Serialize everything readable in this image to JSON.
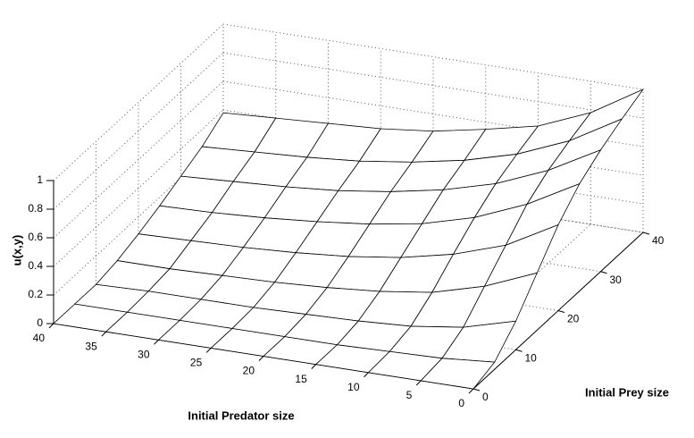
{
  "chart_data": {
    "type": "surface",
    "xlabel": "Initial Prey size",
    "ylabel": "Initial Predator size",
    "zlabel": "u(x,y)",
    "x": [
      0,
      5,
      10,
      15,
      20,
      25,
      30,
      35,
      40
    ],
    "y": [
      0,
      5,
      10,
      15,
      20,
      25,
      30,
      35,
      40
    ],
    "z": [
      [
        0,
        0.05,
        0.2,
        0.4,
        0.6,
        0.75,
        0.85,
        0.93,
        1
      ],
      [
        0,
        0.02,
        0.1,
        0.25,
        0.4,
        0.55,
        0.65,
        0.72,
        0.78
      ],
      [
        0,
        0.01,
        0.05,
        0.15,
        0.28,
        0.4,
        0.5,
        0.57,
        0.63
      ],
      [
        0,
        0,
        0.03,
        0.1,
        0.2,
        0.3,
        0.4,
        0.47,
        0.55
      ],
      [
        0,
        0,
        0.02,
        0.07,
        0.15,
        0.24,
        0.33,
        0.4,
        0.48
      ],
      [
        0,
        0,
        0.01,
        0.05,
        0.12,
        0.2,
        0.28,
        0.35,
        0.44
      ],
      [
        0,
        0,
        0.01,
        0.04,
        0.1,
        0.17,
        0.25,
        0.32,
        0.42
      ],
      [
        0,
        0,
        0.01,
        0.03,
        0.09,
        0.15,
        0.23,
        0.3,
        0.4
      ],
      [
        0,
        0,
        0,
        0.03,
        0.08,
        0.14,
        0.21,
        0.28,
        0.38
      ]
    ],
    "xlim": [
      0,
      40
    ],
    "ylim": [
      0,
      40
    ],
    "zlim": [
      0,
      1
    ],
    "xticks": [
      0,
      10,
      20,
      30,
      40
    ],
    "yticks": [
      0,
      5,
      10,
      15,
      20,
      25,
      30,
      35,
      40
    ],
    "zticks": [
      0,
      0.2,
      0.4,
      0.6,
      0.8,
      1
    ],
    "grid": true,
    "color": "#ffffff",
    "edge_color": "#000000"
  }
}
